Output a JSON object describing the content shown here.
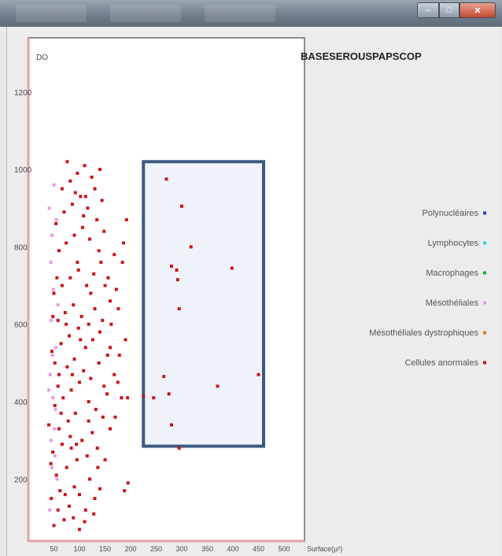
{
  "chart_data": {
    "type": "scatter",
    "title": "BASESEROUSPAPSCOP",
    "xlabel": "Surface(µ²)",
    "ylabel": "DO",
    "xlim": [
      0,
      540
    ],
    "ylim": [
      40,
      1340
    ],
    "x_ticks": [
      50,
      100,
      150,
      200,
      250,
      300,
      350,
      400,
      450,
      500
    ],
    "x_tick_labels": [
      "50",
      "100",
      "150",
      "200",
      "250",
      "300",
      "350",
      "400",
      "450",
      "500"
    ],
    "y_ticks": [
      200,
      400,
      600,
      800,
      1000,
      1200
    ],
    "y_tick_labels": [
      "200",
      "400",
      "600",
      "800",
      "1000",
      "1200"
    ],
    "legend_placement": "right",
    "grid": false,
    "legend": [
      {
        "name": "Polynucléaires",
        "color": "#2a3bd6"
      },
      {
        "name": "Lymphocytes",
        "color": "#2bd6d6"
      },
      {
        "name": "Macrophages",
        "color": "#17b817"
      },
      {
        "name": "Mésothéliales",
        "color": "#e79be3"
      },
      {
        "name": "Mésothéliales dystrophiques",
        "color": "#e07a1a"
      },
      {
        "name": "Cellules anormales",
        "color": "#c8141c"
      }
    ],
    "selection_box": {
      "x": [
        225,
        460
      ],
      "y": [
        285,
        1020
      ],
      "color": "#3a5a82"
    },
    "series": [
      {
        "name": "Cellules anormales",
        "color": "#c8141c",
        "points": [
          [
            50,
            80
          ],
          [
            58,
            120
          ],
          [
            45,
            150
          ],
          [
            62,
            170
          ],
          [
            70,
            95
          ],
          [
            80,
            130
          ],
          [
            90,
            180
          ],
          [
            55,
            210
          ],
          [
            75,
            230
          ],
          [
            100,
            160
          ],
          [
            110,
            90
          ],
          [
            95,
            250
          ],
          [
            48,
            270
          ],
          [
            66,
            290
          ],
          [
            82,
            310
          ],
          [
            120,
            200
          ],
          [
            130,
            150
          ],
          [
            140,
            175
          ],
          [
            60,
            330
          ],
          [
            78,
            350
          ],
          [
            92,
            370
          ],
          [
            105,
            300
          ],
          [
            115,
            260
          ],
          [
            125,
            320
          ],
          [
            135,
            280
          ],
          [
            52,
            390
          ],
          [
            68,
            410
          ],
          [
            84,
            430
          ],
          [
            100,
            450
          ],
          [
            118,
            400
          ],
          [
            132,
            380
          ],
          [
            150,
            250
          ],
          [
            160,
            330
          ],
          [
            170,
            360
          ],
          [
            182,
            410
          ],
          [
            195,
            190
          ],
          [
            188,
            170
          ],
          [
            60,
            470
          ],
          [
            76,
            490
          ],
          [
            90,
            510
          ],
          [
            108,
            480
          ],
          [
            122,
            460
          ],
          [
            138,
            500
          ],
          [
            148,
            440
          ],
          [
            46,
            530
          ],
          [
            64,
            550
          ],
          [
            80,
            570
          ],
          [
            98,
            590
          ],
          [
            112,
            540
          ],
          [
            126,
            560
          ],
          [
            140,
            580
          ],
          [
            155,
            520
          ],
          [
            168,
            470
          ],
          [
            175,
            450
          ],
          [
            58,
            610
          ],
          [
            72,
            630
          ],
          [
            88,
            650
          ],
          [
            104,
            620
          ],
          [
            118,
            600
          ],
          [
            130,
            640
          ],
          [
            145,
            610
          ],
          [
            160,
            660
          ],
          [
            172,
            690
          ],
          [
            190,
            560
          ],
          [
            50,
            680
          ],
          [
            66,
            700
          ],
          [
            82,
            720
          ],
          [
            98,
            740
          ],
          [
            114,
            700
          ],
          [
            128,
            730
          ],
          [
            142,
            760
          ],
          [
            156,
            720
          ],
          [
            168,
            780
          ],
          [
            186,
            810
          ],
          [
            60,
            790
          ],
          [
            74,
            810
          ],
          [
            90,
            830
          ],
          [
            106,
            850
          ],
          [
            120,
            820
          ],
          [
            134,
            870
          ],
          [
            148,
            840
          ],
          [
            54,
            860
          ],
          [
            70,
            890
          ],
          [
            86,
            910
          ],
          [
            102,
            930
          ],
          [
            116,
            900
          ],
          [
            130,
            950
          ],
          [
            144,
            920
          ],
          [
            66,
            950
          ],
          [
            82,
            970
          ],
          [
            96,
            990
          ],
          [
            110,
            1010
          ],
          [
            124,
            980
          ],
          [
            140,
            1000
          ],
          [
            76,
            1020
          ],
          [
            92,
            940
          ],
          [
            108,
            880
          ],
          [
            40,
            340
          ],
          [
            44,
            240
          ],
          [
            150,
            700
          ],
          [
            162,
            600
          ],
          [
            178,
            520
          ],
          [
            154,
            420
          ],
          [
            194,
            410
          ],
          [
            88,
            100
          ],
          [
            112,
            120
          ],
          [
            136,
            230
          ],
          [
            72,
            160
          ],
          [
            94,
            290
          ],
          [
            118,
            350
          ],
          [
            86,
            470
          ],
          [
            102,
            560
          ],
          [
            74,
            600
          ],
          [
            122,
            680
          ],
          [
            96,
            760
          ],
          [
            138,
            790
          ],
          [
            112,
            930
          ],
          [
            58,
            440
          ],
          [
            64,
            370
          ],
          [
            84,
            280
          ],
          [
            48,
            620
          ],
          [
            52,
            500
          ],
          [
            56,
            720
          ],
          [
            100,
            70
          ],
          [
            128,
            110
          ],
          [
            146,
            360
          ],
          [
            160,
            540
          ],
          [
            176,
            640
          ],
          [
            184,
            760
          ],
          [
            192,
            870
          ],
          [
            270,
            975
          ],
          [
            300,
            905
          ],
          [
            318,
            800
          ],
          [
            280,
            750
          ],
          [
            290,
            740
          ],
          [
            292,
            715
          ],
          [
            295,
            640
          ],
          [
            398,
            745
          ],
          [
            265,
            465
          ],
          [
            275,
            420
          ],
          [
            370,
            440
          ],
          [
            280,
            340
          ],
          [
            295,
            280
          ],
          [
            450,
            470
          ],
          [
            225,
            415
          ],
          [
            245,
            410
          ]
        ]
      },
      {
        "name": "Mésothéliales",
        "color": "#e79be3",
        "points": [
          [
            42,
            120
          ],
          [
            46,
            230
          ],
          [
            44,
            300
          ],
          [
            48,
            410
          ],
          [
            43,
            470
          ],
          [
            47,
            520
          ],
          [
            45,
            610
          ],
          [
            49,
            690
          ],
          [
            44,
            760
          ],
          [
            46,
            830
          ],
          [
            52,
            260
          ],
          [
            54,
            540
          ],
          [
            41,
            900
          ],
          [
            50,
            960
          ],
          [
            56,
            200
          ],
          [
            53,
            380
          ],
          [
            58,
            650
          ],
          [
            40,
            430
          ],
          [
            51,
            330
          ],
          [
            55,
            870
          ]
        ]
      }
    ]
  }
}
